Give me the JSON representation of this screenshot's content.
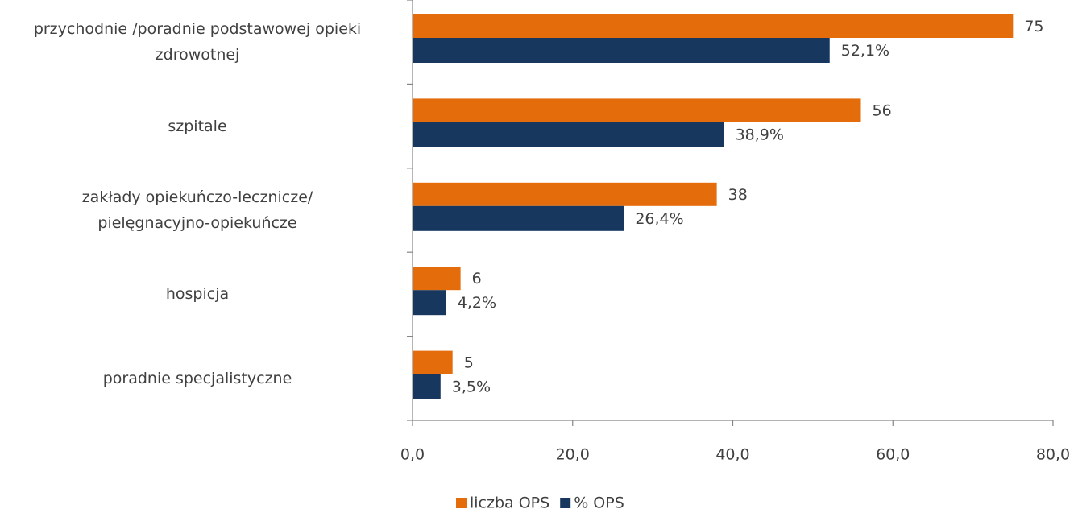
{
  "chart_data": {
    "type": "hbar",
    "categories": [
      "przychodnie /poradnie podstawowej opieki\nzdrowotnej",
      "szpitale",
      "zakłady opiekuńczo-lecznicze/\npielęgnacyjno-opiekuńcze",
      "hospicja",
      "poradnie specjalistyczne"
    ],
    "series": [
      {
        "name": "liczba OPS",
        "color": "#e46c0a",
        "values": [
          75,
          56,
          38,
          6,
          5
        ]
      },
      {
        "name": "% OPS",
        "color": "#17375e",
        "values": [
          52.1,
          38.9,
          26.4,
          4.2,
          3.5
        ],
        "value_labels": [
          "52,1%",
          "38,9%",
          "26,4%",
          "4,2%",
          "3,5%"
        ]
      }
    ],
    "xlim": [
      0,
      80
    ],
    "xticks": [
      {
        "value": 0,
        "label": "0,0"
      },
      {
        "value": 20,
        "label": "20,0"
      },
      {
        "value": 40,
        "label": "40,0"
      },
      {
        "value": 60,
        "label": "60,0"
      },
      {
        "value": 80,
        "label": "80,0"
      }
    ],
    "grid": false,
    "legend": "bottom"
  }
}
